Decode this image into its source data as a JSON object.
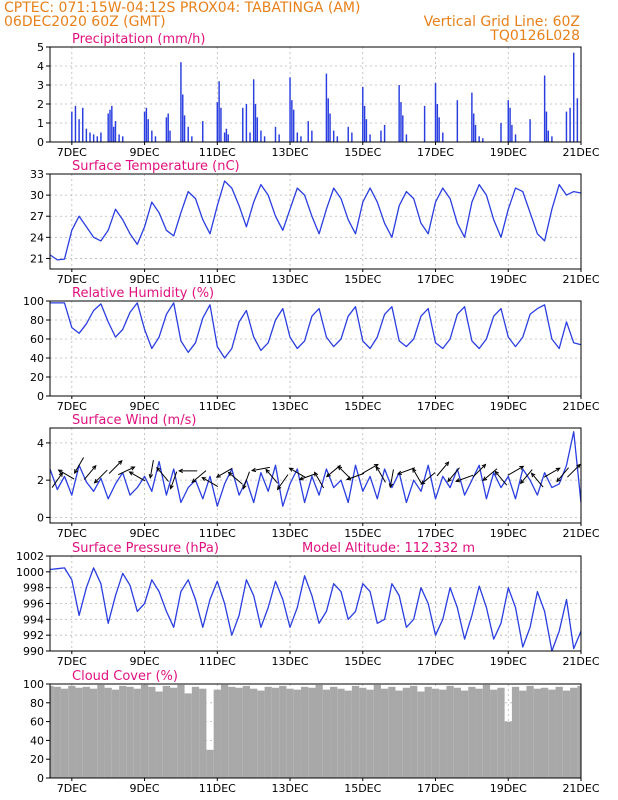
{
  "header": {
    "line1_left": "CPTEC:   071:15W-04:12S   PROX04: TABATINGA (AM)",
    "line2_left": "06DEC2020 60Z (GMT)",
    "line2_right": "Vertical Grid Line: 60Z",
    "line3_right": "TQ0126L028"
  },
  "colors": {
    "title": "#e0117f",
    "header": "#e8801a",
    "line": "#2a3ee0",
    "bar": "#2a3ee0",
    "cloud": "#a8a8a8",
    "arrow": "#000000"
  },
  "chart_data": [
    {
      "id": "precip",
      "type": "bar",
      "title": "Precipitation (mm/h)",
      "x_tick_labels": [
        "7DEC",
        "9DEC",
        "11DEC",
        "13DEC",
        "15DEC",
        "17DEC",
        "19DEC",
        "21DEC"
      ],
      "xlim_days": [
        6.4,
        21.0
      ],
      "ylim": [
        0,
        5
      ],
      "y_ticks": [
        0,
        1,
        2,
        3,
        4,
        5
      ],
      "y_tick_labels": [
        "0",
        "1",
        "2",
        "3",
        "4",
        "5"
      ],
      "color": "bar",
      "x_days": [
        7.0,
        7.1,
        7.2,
        7.3,
        7.4,
        7.5,
        7.6,
        7.7,
        7.8,
        8.0,
        8.05,
        8.1,
        8.15,
        8.2,
        8.3,
        8.4,
        9.0,
        9.05,
        9.1,
        9.2,
        9.3,
        9.6,
        9.65,
        9.7,
        10.0,
        10.05,
        10.1,
        10.2,
        10.3,
        10.6,
        11.0,
        11.05,
        11.1,
        11.2,
        11.25,
        11.3,
        11.7,
        11.8,
        11.9,
        12.0,
        12.05,
        12.1,
        12.2,
        12.3,
        12.6,
        12.7,
        13.0,
        13.05,
        13.1,
        13.2,
        13.3,
        13.5,
        13.6,
        14.0,
        14.05,
        14.1,
        14.2,
        14.3,
        14.6,
        14.7,
        15.0,
        15.05,
        15.1,
        15.2,
        15.5,
        15.6,
        16.0,
        16.05,
        16.1,
        16.2,
        16.7,
        17.0,
        17.05,
        17.1,
        17.2,
        17.6,
        18.0,
        18.05,
        18.1,
        18.2,
        18.3,
        18.8,
        19.0,
        19.05,
        19.1,
        19.2,
        19.6,
        20.0,
        20.05,
        20.1,
        20.2,
        20.6,
        20.7,
        20.8,
        20.9
      ],
      "values": [
        1.6,
        1.9,
        1.2,
        1.8,
        0.7,
        0.5,
        0.4,
        0.3,
        0.5,
        1.5,
        1.7,
        1.9,
        0.8,
        1.1,
        0.4,
        0.3,
        1.6,
        1.8,
        1.2,
        0.6,
        0.3,
        1.3,
        1.5,
        0.6,
        4.2,
        2.5,
        1.4,
        0.8,
        0.3,
        1.1,
        2.1,
        3.2,
        1.8,
        0.5,
        0.7,
        0.4,
        1.8,
        2.0,
        0.5,
        3.3,
        2.0,
        1.3,
        0.6,
        0.3,
        0.8,
        0.4,
        3.4,
        2.2,
        1.7,
        0.5,
        0.3,
        1.1,
        0.6,
        3.6,
        2.3,
        1.5,
        0.6,
        0.3,
        0.8,
        0.5,
        2.9,
        1.9,
        1.2,
        0.4,
        0.6,
        0.9,
        3.0,
        2.1,
        1.4,
        0.4,
        1.9,
        3.1,
        2.0,
        1.3,
        0.5,
        2.2,
        2.6,
        1.5,
        0.9,
        0.3,
        0.2,
        1.0,
        2.2,
        1.8,
        0.9,
        0.4,
        1.2,
        3.5,
        1.6,
        0.6,
        0.3,
        1.6,
        1.8,
        4.7,
        2.3
      ]
    },
    {
      "id": "temp",
      "type": "line",
      "title": "Surface Temperature (nC)",
      "x_tick_labels": [
        "7DEC",
        "9DEC",
        "11DEC",
        "13DEC",
        "15DEC",
        "17DEC",
        "19DEC",
        "21DEC"
      ],
      "xlim_days": [
        6.4,
        21.0
      ],
      "ylim": [
        19.5,
        33
      ],
      "y_ticks": [
        21,
        24,
        27,
        30,
        33
      ],
      "y_tick_labels": [
        "21",
        "24",
        "27",
        "30",
        "33"
      ],
      "color": "line",
      "x_days": [
        6.4,
        6.6,
        6.8,
        7.0,
        7.2,
        7.4,
        7.6,
        7.8,
        8.0,
        8.2,
        8.4,
        8.6,
        8.8,
        9.0,
        9.2,
        9.4,
        9.6,
        9.8,
        10.0,
        10.2,
        10.4,
        10.6,
        10.8,
        11.0,
        11.2,
        11.4,
        11.6,
        11.8,
        12.0,
        12.2,
        12.4,
        12.6,
        12.8,
        13.0,
        13.2,
        13.4,
        13.6,
        13.8,
        14.0,
        14.2,
        14.4,
        14.6,
        14.8,
        15.0,
        15.2,
        15.4,
        15.6,
        15.8,
        16.0,
        16.2,
        16.4,
        16.6,
        16.8,
        17.0,
        17.2,
        17.4,
        17.6,
        17.8,
        18.0,
        18.2,
        18.4,
        18.6,
        18.8,
        19.0,
        19.2,
        19.4,
        19.6,
        19.8,
        20.0,
        20.2,
        20.4,
        20.6,
        20.8,
        21.0
      ],
      "values": [
        21.5,
        20.8,
        20.9,
        25.0,
        27.0,
        25.5,
        24.0,
        23.5,
        25.0,
        28.0,
        26.5,
        24.5,
        23.0,
        25.5,
        29.0,
        27.5,
        25.0,
        24.2,
        27.5,
        30.5,
        29.5,
        26.5,
        24.5,
        28.5,
        32.0,
        31.0,
        28.5,
        25.5,
        29.0,
        31.5,
        30.0,
        27.0,
        25.0,
        28.0,
        31.0,
        30.0,
        27.0,
        24.5,
        28.0,
        31.0,
        29.5,
        26.5,
        24.5,
        29.0,
        31.0,
        29.0,
        26.0,
        24.0,
        28.5,
        30.5,
        29.5,
        26.0,
        24.5,
        29.0,
        31.0,
        29.5,
        26.0,
        24.0,
        29.0,
        31.5,
        30.0,
        26.5,
        24.0,
        28.0,
        31.0,
        30.5,
        27.5,
        24.5,
        23.5,
        28.0,
        31.5,
        30.0,
        30.5,
        30.3
      ]
    },
    {
      "id": "rh",
      "type": "line",
      "title": "Relative Humidity (%)",
      "x_tick_labels": [
        "7DEC",
        "9DEC",
        "11DEC",
        "13DEC",
        "15DEC",
        "17DEC",
        "19DEC",
        "21DEC"
      ],
      "xlim_days": [
        6.4,
        21.0
      ],
      "ylim": [
        0,
        100
      ],
      "y_ticks": [
        0,
        20,
        40,
        60,
        80,
        100
      ],
      "y_tick_labels": [
        "0",
        "20",
        "40",
        "60",
        "80",
        "100"
      ],
      "color": "line",
      "x_days": [
        6.4,
        6.6,
        6.8,
        7.0,
        7.2,
        7.4,
        7.6,
        7.8,
        8.0,
        8.2,
        8.4,
        8.6,
        8.8,
        9.0,
        9.2,
        9.4,
        9.6,
        9.8,
        10.0,
        10.2,
        10.4,
        10.6,
        10.8,
        11.0,
        11.2,
        11.4,
        11.6,
        11.8,
        12.0,
        12.2,
        12.4,
        12.6,
        12.8,
        13.0,
        13.2,
        13.4,
        13.6,
        13.8,
        14.0,
        14.2,
        14.4,
        14.6,
        14.8,
        15.0,
        15.2,
        15.4,
        15.6,
        15.8,
        16.0,
        16.2,
        16.4,
        16.6,
        16.8,
        17.0,
        17.2,
        17.4,
        17.6,
        17.8,
        18.0,
        18.2,
        18.4,
        18.6,
        18.8,
        19.0,
        19.2,
        19.4,
        19.6,
        19.8,
        20.0,
        20.2,
        20.4,
        20.6,
        20.8,
        21.0
      ],
      "values": [
        98,
        98,
        98,
        72,
        66,
        76,
        90,
        97,
        78,
        62,
        70,
        88,
        98,
        70,
        50,
        62,
        86,
        98,
        58,
        46,
        56,
        82,
        96,
        52,
        40,
        50,
        78,
        90,
        62,
        48,
        56,
        80,
        92,
        62,
        50,
        58,
        84,
        92,
        62,
        52,
        60,
        84,
        94,
        58,
        50,
        62,
        86,
        94,
        58,
        52,
        60,
        84,
        92,
        56,
        50,
        60,
        86,
        94,
        58,
        50,
        60,
        84,
        92,
        62,
        52,
        62,
        86,
        92,
        96,
        60,
        50,
        78,
        56,
        54
      ]
    },
    {
      "id": "wind",
      "type": "line",
      "title": "Surface Wind (m/s)",
      "x_tick_labels": [
        "7DEC",
        "9DEC",
        "11DEC",
        "13DEC",
        "15DEC",
        "17DEC",
        "19DEC",
        "21DEC"
      ],
      "xlim_days": [
        6.4,
        21.0
      ],
      "ylim": [
        -0.3,
        4.8
      ],
      "y_ticks": [
        0,
        2,
        4
      ],
      "y_tick_labels": [
        "0",
        "2",
        "4"
      ],
      "color": "line",
      "x_days": [
        6.4,
        6.6,
        6.8,
        7.0,
        7.2,
        7.4,
        7.6,
        7.8,
        8.0,
        8.2,
        8.4,
        8.6,
        8.8,
        9.0,
        9.2,
        9.4,
        9.6,
        9.8,
        10.0,
        10.2,
        10.4,
        10.6,
        10.8,
        11.0,
        11.2,
        11.4,
        11.6,
        11.8,
        12.0,
        12.2,
        12.4,
        12.6,
        12.8,
        13.0,
        13.2,
        13.4,
        13.6,
        13.8,
        14.0,
        14.2,
        14.4,
        14.6,
        14.8,
        15.0,
        15.2,
        15.4,
        15.6,
        15.8,
        16.0,
        16.2,
        16.4,
        16.6,
        16.8,
        17.0,
        17.2,
        17.4,
        17.6,
        17.8,
        18.0,
        18.2,
        18.4,
        18.6,
        18.8,
        19.0,
        19.2,
        19.4,
        19.6,
        19.8,
        20.0,
        20.2,
        20.4,
        20.6,
        20.8,
        21.0
      ],
      "values": [
        2.6,
        1.5,
        2.2,
        1.2,
        2.8,
        1.9,
        1.4,
        2.1,
        1.0,
        1.8,
        2.4,
        1.2,
        1.6,
        2.2,
        1.4,
        3.0,
        1.2,
        2.6,
        0.8,
        1.6,
        2.0,
        1.0,
        2.2,
        0.6,
        1.8,
        2.6,
        1.2,
        2.0,
        0.8,
        2.4,
        1.4,
        2.8,
        0.6,
        1.8,
        2.6,
        0.8,
        2.2,
        1.2,
        2.6,
        1.6,
        2.0,
        0.8,
        2.8,
        1.4,
        2.2,
        1.0,
        2.6,
        1.6,
        2.4,
        0.8,
        2.0,
        1.4,
        2.8,
        1.0,
        2.2,
        1.6,
        2.6,
        1.2,
        2.0,
        2.8,
        1.0,
        2.4,
        1.6,
        2.2,
        1.0,
        2.6,
        2.0,
        1.2,
        2.4,
        1.6,
        1.8,
        2.8,
        4.6,
        0.8
      ],
      "arrows": {
        "x_days": [
          6.6,
          6.85,
          7.2,
          7.5,
          7.8,
          8.2,
          8.5,
          8.8,
          9.2,
          9.5,
          9.8,
          10.2,
          10.5,
          10.8,
          11.2,
          11.5,
          11.8,
          12.2,
          12.5,
          12.8,
          13.2,
          13.5,
          13.8,
          14.2,
          14.5,
          14.8,
          15.2,
          15.5,
          15.8,
          16.2,
          16.5,
          16.8,
          17.2,
          17.5,
          17.8,
          18.2,
          18.5,
          18.8,
          19.2,
          19.5,
          19.8,
          20.2,
          20.5,
          20.8
        ],
        "y_values": [
          2.0,
          2.3,
          2.8,
          2.4,
          2.2,
          2.7,
          2.5,
          2.2,
          2.6,
          2.3,
          2.0,
          2.5,
          2.2,
          1.9,
          2.4,
          2.1,
          2.0,
          2.6,
          2.2,
          1.9,
          2.4,
          2.2,
          2.0,
          2.5,
          2.4,
          2.2,
          2.6,
          2.3,
          2.1,
          2.5,
          2.2,
          2.1,
          2.6,
          2.3,
          2.1,
          2.5,
          2.3,
          2.1,
          2.5,
          2.2,
          2.0,
          2.4,
          2.3,
          2.5
        ],
        "direction_deg": [
          35,
          300,
          210,
          40,
          225,
          45,
          65,
          300,
          190,
          320,
          200,
          270,
          230,
          300,
          240,
          310,
          200,
          260,
          320,
          215,
          300,
          250,
          330,
          230,
          315,
          250,
          60,
          330,
          190,
          250,
          330,
          230,
          40,
          220,
          250,
          45,
          230,
          320,
          60,
          220,
          320,
          60,
          220,
          45
        ]
      }
    },
    {
      "id": "pressure",
      "type": "line",
      "title": "Surface Pressure (hPa)",
      "annotation": "Model Altitude: 112.332 m",
      "x_tick_labels": [
        "7DEC",
        "9DEC",
        "11DEC",
        "13DEC",
        "15DEC",
        "17DEC",
        "19DEC",
        "21DEC"
      ],
      "xlim_days": [
        6.4,
        21.0
      ],
      "ylim": [
        990,
        1002
      ],
      "y_ticks": [
        990,
        992,
        994,
        996,
        998,
        1000,
        1002
      ],
      "y_tick_labels": [
        "990",
        "992",
        "994",
        "996",
        "998",
        "1000",
        "1002"
      ],
      "color": "line",
      "x_days": [
        6.4,
        6.6,
        6.8,
        7.0,
        7.2,
        7.4,
        7.6,
        7.8,
        8.0,
        8.2,
        8.4,
        8.6,
        8.8,
        9.0,
        9.2,
        9.4,
        9.6,
        9.8,
        10.0,
        10.2,
        10.4,
        10.6,
        10.8,
        11.0,
        11.2,
        11.4,
        11.6,
        11.8,
        12.0,
        12.2,
        12.4,
        12.6,
        12.8,
        13.0,
        13.2,
        13.4,
        13.6,
        13.8,
        14.0,
        14.2,
        14.4,
        14.6,
        14.8,
        15.0,
        15.2,
        15.4,
        15.6,
        15.8,
        16.0,
        16.2,
        16.4,
        16.6,
        16.8,
        17.0,
        17.2,
        17.4,
        17.6,
        17.8,
        18.0,
        18.2,
        18.4,
        18.6,
        18.8,
        19.0,
        19.2,
        19.4,
        19.6,
        19.8,
        20.0,
        20.2,
        20.4,
        20.6,
        20.8,
        21.0
      ],
      "values": [
        1000.3,
        1000.4,
        1000.5,
        999.0,
        994.5,
        998.0,
        1000.5,
        998.5,
        993.5,
        997.0,
        999.8,
        998.3,
        995.0,
        996.0,
        999.0,
        997.5,
        995.0,
        993.0,
        997.5,
        999.0,
        996.5,
        993.0,
        996.5,
        998.8,
        996.0,
        992.0,
        994.5,
        999.0,
        997.0,
        993.0,
        995.5,
        998.8,
        996.5,
        993.0,
        995.5,
        999.5,
        997.0,
        993.5,
        995.0,
        998.5,
        997.5,
        994.0,
        995.0,
        998.5,
        997.5,
        993.5,
        994.0,
        998.5,
        997.0,
        993.0,
        994.0,
        998.0,
        996.0,
        992.0,
        994.0,
        998.0,
        995.5,
        991.5,
        994.5,
        998.2,
        995.5,
        991.5,
        993.5,
        998.0,
        995.5,
        990.5,
        993.0,
        997.5,
        995.0,
        990.0,
        992.5,
        996.5,
        990.3,
        992.5
      ]
    },
    {
      "id": "cloud",
      "type": "area",
      "title": "Cloud Cover (%)",
      "x_tick_labels": [
        "7DEC",
        "9DEC",
        "11DEC",
        "13DEC",
        "15DEC",
        "17DEC",
        "19DEC",
        "21DEC"
      ],
      "xlim_days": [
        6.4,
        21.0
      ],
      "ylim": [
        0,
        100
      ],
      "y_ticks": [
        0,
        20,
        40,
        60,
        80,
        100
      ],
      "y_tick_labels": [
        "0",
        "20",
        "40",
        "60",
        "80",
        "100"
      ],
      "color": "cloud",
      "x_days": [
        6.4,
        6.6,
        6.8,
        7.0,
        7.2,
        7.4,
        7.6,
        7.8,
        8.0,
        8.2,
        8.4,
        8.6,
        8.8,
        9.0,
        9.2,
        9.4,
        9.6,
        9.8,
        10.0,
        10.2,
        10.4,
        10.6,
        10.8,
        11.0,
        11.2,
        11.4,
        11.6,
        11.8,
        12.0,
        12.2,
        12.4,
        12.6,
        12.8,
        13.0,
        13.2,
        13.4,
        13.6,
        13.8,
        14.0,
        14.2,
        14.4,
        14.6,
        14.8,
        15.0,
        15.2,
        15.4,
        15.6,
        15.8,
        16.0,
        16.2,
        16.4,
        16.6,
        16.8,
        17.0,
        17.2,
        17.4,
        17.6,
        17.8,
        18.0,
        18.2,
        18.4,
        18.6,
        18.8,
        19.0,
        19.2,
        19.4,
        19.6,
        19.8,
        20.0,
        20.2,
        20.4,
        20.6,
        20.8,
        21.0
      ],
      "values": [
        98,
        97,
        95,
        98,
        96,
        97,
        95,
        99,
        96,
        94,
        98,
        97,
        95,
        99,
        97,
        92,
        98,
        96,
        99,
        90,
        97,
        95,
        30,
        94,
        99,
        97,
        96,
        98,
        95,
        93,
        97,
        96,
        98,
        95,
        94,
        97,
        96,
        99,
        94,
        97,
        95,
        93,
        98,
        96,
        94,
        99,
        95,
        97,
        93,
        96,
        98,
        92,
        97,
        95,
        94,
        98,
        96,
        93,
        97,
        95,
        99,
        94,
        96,
        60,
        97,
        93,
        98,
        95,
        96,
        94,
        97,
        93,
        96,
        98
      ]
    }
  ]
}
